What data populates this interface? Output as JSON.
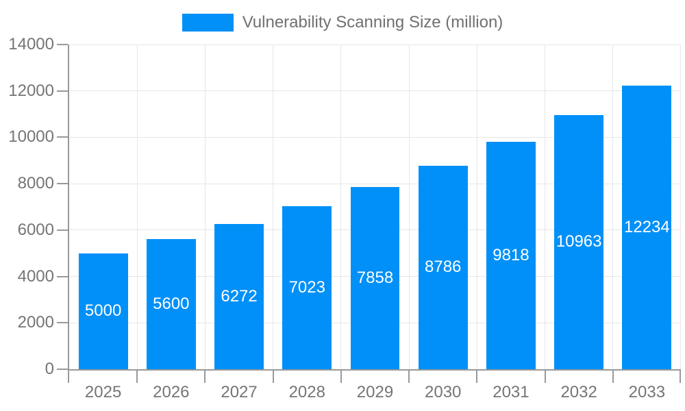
{
  "chart_data": {
    "type": "bar",
    "title": "Vulnerability Scanning Size (million)",
    "series_name": "Vulnerability Scanning Size (million)",
    "categories": [
      "2025",
      "2026",
      "2027",
      "2028",
      "2029",
      "2030",
      "2031",
      "2032",
      "2033"
    ],
    "values": [
      5000,
      5600,
      6272,
      7023,
      7858,
      8786,
      9818,
      10963,
      12234
    ],
    "xlabel": "",
    "ylabel": "",
    "ylim": [
      0,
      14000
    ],
    "ytick_step": 2000,
    "grid": true,
    "legend_position": "top-center",
    "value_labels": "inside-center",
    "colors": {
      "bar": "#0190f8",
      "value_label": "#ffffff",
      "axis_text": "#757575",
      "legend_text": "#707070",
      "axis_line": "#999999",
      "grid_line": "#e6e6e6",
      "background": "#ffffff"
    }
  }
}
